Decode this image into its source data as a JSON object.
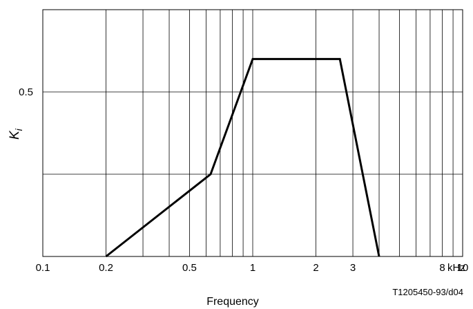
{
  "chart_data": {
    "type": "line",
    "x_scale": "log",
    "xlim": [
      0.1,
      10
    ],
    "ylim": [
      0,
      0.75
    ],
    "grid": true,
    "x_tick_labels": [
      {
        "value": 0.1,
        "label": "0.1"
      },
      {
        "value": 0.2,
        "label": "0.2"
      },
      {
        "value": 0.5,
        "label": "0.5"
      },
      {
        "value": 1,
        "label": "1"
      },
      {
        "value": 2,
        "label": "2"
      },
      {
        "value": 3,
        "label": "3"
      },
      {
        "value": 8,
        "label": "8"
      },
      {
        "value": 10,
        "label": "10"
      }
    ],
    "x_unit": "kHz",
    "x_gridlines": [
      0.2,
      0.3,
      0.4,
      0.5,
      0.6,
      0.7,
      0.8,
      0.9,
      1,
      2,
      3,
      4,
      5,
      6,
      7,
      8,
      9
    ],
    "y_tick_labels": [
      {
        "value": 0.5,
        "label": "0.5"
      }
    ],
    "y_gridlines": [
      0.25,
      0.5
    ],
    "xlabel": "Frequency",
    "ylabel": {
      "main": "K",
      "sub": "i"
    },
    "series": [
      {
        "x": [
          0.2,
          0.63,
          1.0,
          2.6,
          4.0
        ],
        "y": [
          0,
          0.25,
          0.6,
          0.6,
          0
        ]
      }
    ],
    "annotation": "T1205450-93/d04"
  }
}
